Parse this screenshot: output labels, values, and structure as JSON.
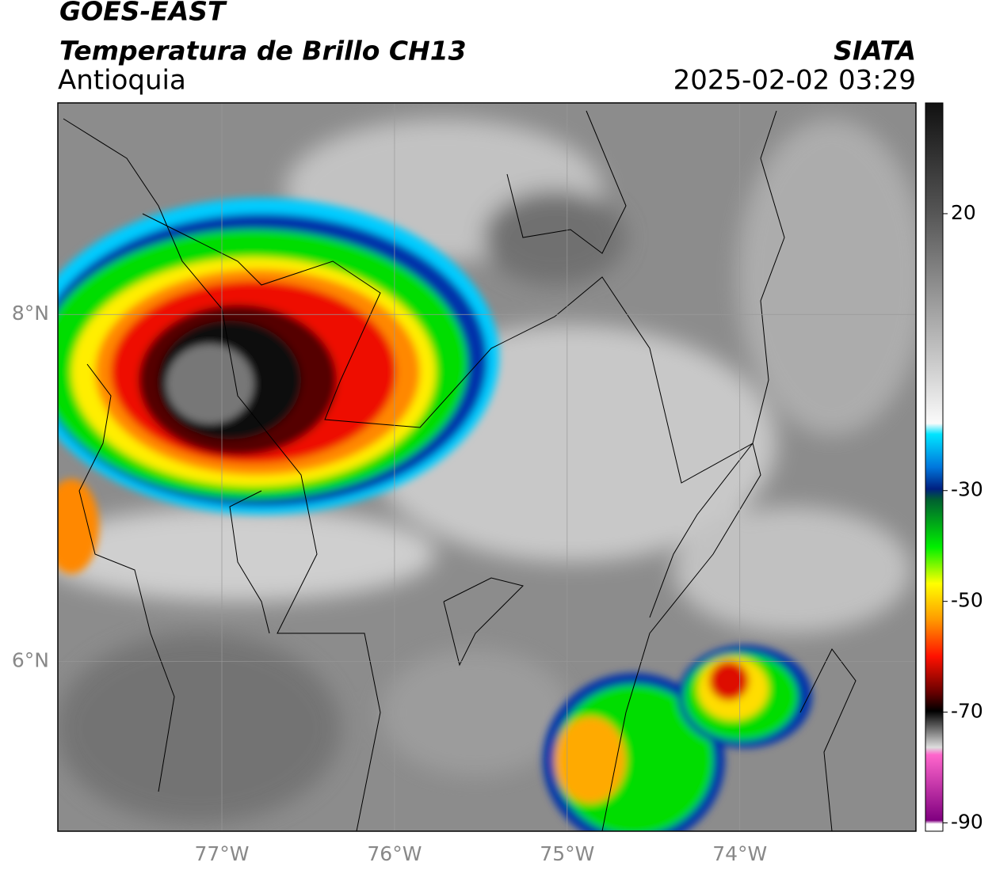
{
  "header": {
    "satellite": "GOES-EAST",
    "product": "Temperatura de Brillo CH13",
    "region": "Antioquia",
    "agency": "SIATA",
    "datetime": "2025-02-02 03:29"
  },
  "map": {
    "lonlim": [
      -77.95,
      -72.98
    ],
    "latlim": [
      5.02,
      9.22
    ],
    "grid": true,
    "lonticks": [
      {
        "value": -77,
        "label": "77°W"
      },
      {
        "value": -76,
        "label": "76°W"
      },
      {
        "value": -75,
        "label": "75°W"
      },
      {
        "value": -74,
        "label": "74°W"
      }
    ],
    "latticks": [
      {
        "value": 8,
        "label": "8°N"
      },
      {
        "value": 6,
        "label": "6°N"
      }
    ]
  },
  "colorbar": {
    "lim": [
      -91.5,
      40
    ],
    "ticks": [
      20,
      -30,
      -50,
      -70,
      -90
    ]
  }
}
